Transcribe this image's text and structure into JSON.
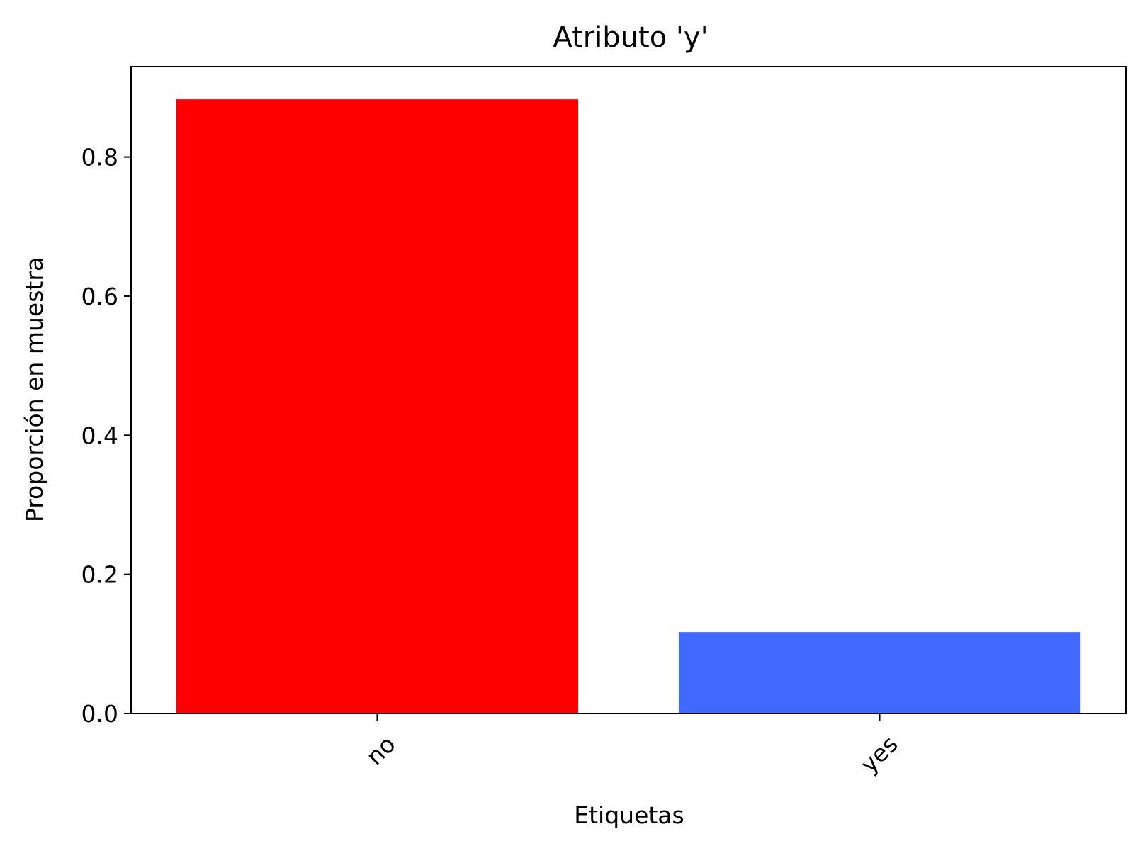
{
  "chart_data": {
    "type": "bar",
    "title": "Atributo 'y'",
    "xlabel": "Etiquetas",
    "ylabel": "Proporción en muestra",
    "categories": [
      "no",
      "yes"
    ],
    "values": [
      0.883,
      0.117
    ],
    "colors": [
      "#ff0000",
      "#4169ff"
    ],
    "ylim": [
      0,
      0.93
    ],
    "yticks": [
      0.0,
      0.2,
      0.4,
      0.6,
      0.8
    ],
    "ytick_labels": [
      "0.0",
      "0.2",
      "0.4",
      "0.6",
      "0.8"
    ],
    "xtick_rotation_deg": 45,
    "grid": false,
    "legend": "none"
  }
}
